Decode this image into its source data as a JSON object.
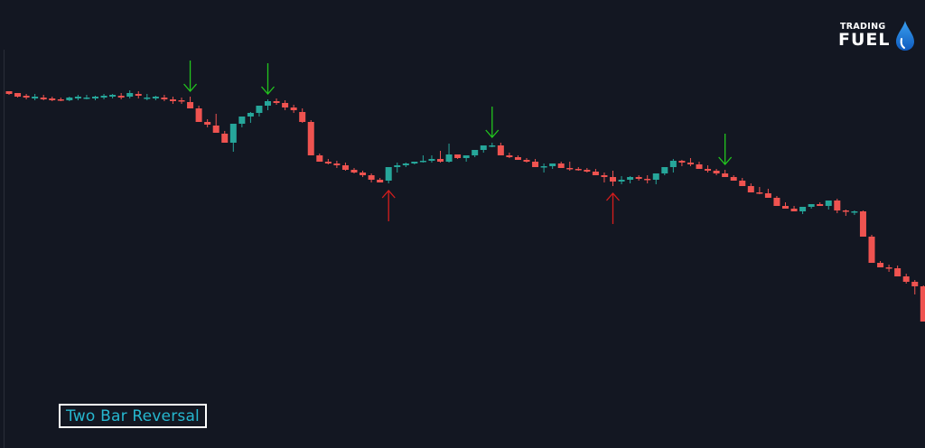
{
  "logo": {
    "line1": "Trading",
    "line2": "FUEL"
  },
  "pattern_label": "Two Bar Reversal",
  "colors": {
    "background": "#131722",
    "up": "#26a69a",
    "down": "#ef5350",
    "bearish_arrow": "#22c51e",
    "bullish_arrow": "#d61d1d",
    "label_text": "#26b7cf",
    "drop_top": "#3aa0f0",
    "drop_bottom": "#0f5bbf"
  },
  "chart_data": {
    "type": "candlestick",
    "title": "",
    "xlabel": "",
    "ylabel": "",
    "ylim": [
      0,
      496
    ],
    "grid": false,
    "ohlc": [
      [
        395,
        395,
        391,
        392
      ],
      [
        393,
        393,
        388,
        389
      ],
      [
        390,
        392,
        386,
        388
      ],
      [
        387,
        392,
        385,
        389
      ],
      [
        388,
        391,
        385,
        386
      ],
      [
        387,
        389,
        384,
        385
      ],
      [
        386,
        388,
        384,
        385
      ],
      [
        385,
        389,
        384,
        388
      ],
      [
        387,
        391,
        385,
        389
      ],
      [
        388,
        391,
        386,
        388
      ],
      [
        387,
        390,
        385,
        389
      ],
      [
        388,
        392,
        386,
        390
      ],
      [
        389,
        392,
        387,
        391
      ],
      [
        390,
        393,
        386,
        388
      ],
      [
        389,
        396,
        387,
        393
      ],
      [
        392,
        395,
        387,
        390
      ],
      [
        388,
        392,
        385,
        388
      ],
      [
        387,
        390,
        385,
        389
      ],
      [
        388,
        391,
        384,
        386
      ],
      [
        386,
        389,
        381,
        384
      ],
      [
        385,
        388,
        381,
        384
      ],
      [
        383,
        389,
        378,
        376
      ],
      [
        376,
        379,
        361,
        361
      ],
      [
        361,
        364,
        355,
        358
      ],
      [
        357,
        370,
        355,
        349
      ],
      [
        348,
        351,
        339,
        338
      ],
      [
        338,
        348,
        328,
        359
      ],
      [
        359,
        364,
        355,
        367
      ],
      [
        367,
        372,
        360,
        371
      ],
      [
        371,
        376,
        367,
        379
      ],
      [
        379,
        386,
        374,
        384
      ],
      [
        384,
        387,
        380,
        382
      ],
      [
        382,
        385,
        374,
        377
      ],
      [
        377,
        380,
        371,
        374
      ],
      [
        372,
        376,
        360,
        361
      ],
      [
        361,
        363,
        362,
        324
      ],
      [
        324,
        326,
        319,
        317
      ],
      [
        317,
        320,
        314,
        315
      ],
      [
        315,
        318,
        310,
        313
      ],
      [
        313,
        316,
        307,
        308
      ],
      [
        308,
        310,
        304,
        305
      ],
      [
        305,
        307,
        300,
        302
      ],
      [
        302,
        304,
        294,
        297
      ],
      [
        297,
        299,
        295,
        294
      ],
      [
        296,
        293,
        297,
        311
      ],
      [
        311,
        305,
        316,
        313
      ],
      [
        313,
        311,
        316,
        315
      ],
      [
        315,
        314,
        316,
        317
      ],
      [
        317,
        316,
        324,
        318
      ],
      [
        318,
        316,
        324,
        320
      ],
      [
        320,
        316,
        329,
        317
      ],
      [
        317,
        316,
        337,
        325
      ],
      [
        325,
        321,
        320,
        321
      ],
      [
        321,
        317,
        323,
        324
      ],
      [
        324,
        322,
        328,
        330
      ],
      [
        330,
        327,
        331,
        335
      ],
      [
        335,
        333,
        338,
        335
      ],
      [
        335,
        332,
        338,
        324
      ],
      [
        324,
        321,
        327,
        322
      ],
      [
        322,
        319,
        324,
        319
      ],
      [
        319,
        316,
        321,
        317
      ],
      [
        317,
        314,
        320,
        311
      ],
      [
        311,
        305,
        315,
        312
      ],
      [
        312,
        309,
        315,
        315
      ],
      [
        315,
        310,
        317,
        310
      ],
      [
        310,
        307,
        317,
        309
      ],
      [
        309,
        307,
        311,
        308
      ],
      [
        308,
        305,
        310,
        306
      ],
      [
        306,
        302,
        309,
        302
      ],
      [
        302,
        294,
        305,
        300
      ],
      [
        300,
        290,
        307,
        295
      ],
      [
        295,
        292,
        301,
        297
      ],
      [
        297,
        293,
        301,
        300
      ],
      [
        300,
        296,
        302,
        298
      ],
      [
        298,
        293,
        302,
        297
      ],
      [
        297,
        292,
        302,
        304
      ],
      [
        304,
        302,
        311,
        311
      ],
      [
        311,
        305,
        320,
        318
      ],
      [
        318,
        312,
        319,
        316
      ],
      [
        316,
        312,
        321,
        314
      ],
      [
        314,
        309,
        317,
        309
      ],
      [
        309,
        305,
        313,
        307
      ],
      [
        307,
        302,
        309,
        304
      ],
      [
        304,
        302,
        308,
        300
      ],
      [
        300,
        296,
        302,
        296
      ],
      [
        296,
        293,
        299,
        290
      ],
      [
        290,
        287,
        293,
        283
      ],
      [
        283,
        281,
        289,
        282
      ],
      [
        282,
        280,
        287,
        277
      ],
      [
        277,
        273,
        279,
        268
      ],
      [
        268,
        265,
        272,
        265
      ],
      [
        265,
        262,
        268,
        262
      ],
      [
        262,
        259,
        264,
        267
      ],
      [
        267,
        265,
        270,
        270
      ],
      [
        270,
        268,
        272,
        268
      ],
      [
        268,
        264,
        270,
        274
      ],
      [
        274,
        260,
        276,
        263
      ],
      [
        263,
        257,
        264,
        262
      ],
      [
        262,
        258,
        263,
        262
      ],
      [
        262,
        256,
        263,
        234
      ],
      [
        234,
        230,
        236,
        205
      ],
      [
        205,
        200,
        207,
        200
      ],
      [
        200,
        195,
        203,
        199
      ],
      [
        199,
        196,
        202,
        190
      ],
      [
        190,
        182,
        193,
        184
      ],
      [
        184,
        170,
        186,
        179
      ],
      [
        179,
        140,
        180,
        140
      ],
      [
        140,
        132,
        141,
        141
      ],
      [
        141,
        131,
        144,
        132
      ],
      [
        132,
        124,
        134,
        125
      ],
      [
        125,
        118,
        127,
        113
      ],
      [
        113,
        111,
        116,
        102
      ],
      [
        102,
        110,
        98,
        97
      ],
      [
        97,
        111,
        94,
        103
      ],
      [
        103,
        112,
        99,
        97
      ],
      [
        97,
        99,
        87,
        91
      ],
      [
        91,
        93,
        84,
        90
      ]
    ]
  }
}
